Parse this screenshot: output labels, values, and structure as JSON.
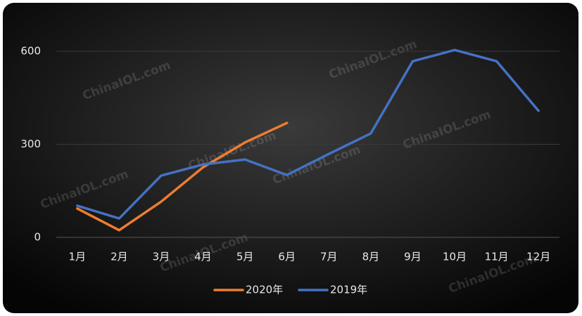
{
  "chart_data": {
    "type": "line",
    "categories": [
      "1月",
      "2月",
      "3月",
      "4月",
      "5月",
      "6月",
      "7月",
      "8月",
      "9月",
      "10月",
      "11月",
      "12月"
    ],
    "series": [
      {
        "name": "2020年",
        "color": "#ed7d31",
        "values": [
          93,
          23,
          115,
          226,
          306,
          369,
          null,
          null,
          null,
          null,
          null,
          null
        ]
      },
      {
        "name": "2019年",
        "color": "#4472c4",
        "values": [
          102,
          61,
          199,
          235,
          251,
          201,
          269,
          335,
          568,
          604,
          568,
          408
        ]
      }
    ],
    "ylim": [
      0,
      600
    ],
    "yticks": [
      0,
      300,
      600
    ],
    "grid": true,
    "watermark": "ChinaIOL.com"
  }
}
